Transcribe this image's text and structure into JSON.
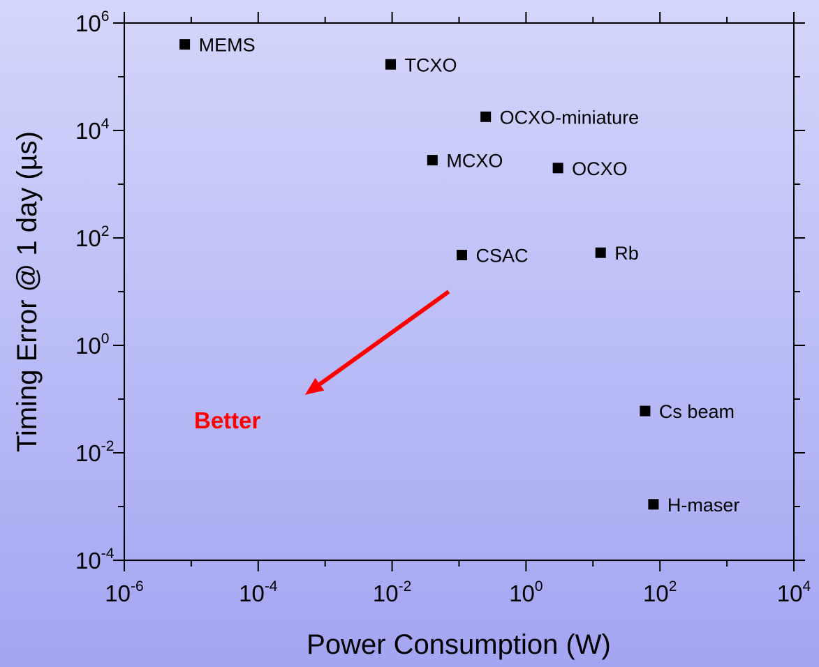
{
  "chart_data": {
    "type": "scatter",
    "xlabel": "Power Consumption (W)",
    "ylabel": "Timing  Error @ 1 day (µs)",
    "x_scale": "log",
    "y_scale": "log",
    "xlim": [
      1e-06,
      10000
    ],
    "ylim": [
      0.0001,
      1000000
    ],
    "x_ticks": [
      {
        "base": "10",
        "exp": "-6",
        "value": 1e-06
      },
      {
        "base": "10",
        "exp": "-4",
        "value": 0.0001
      },
      {
        "base": "10",
        "exp": "-2",
        "value": 0.01
      },
      {
        "base": "10",
        "exp": "0",
        "value": 1
      },
      {
        "base": "10",
        "exp": "2",
        "value": 100
      },
      {
        "base": "10",
        "exp": "4",
        "value": 10000
      }
    ],
    "y_ticks": [
      {
        "base": "10",
        "exp": "-4",
        "value": 0.0001
      },
      {
        "base": "10",
        "exp": "-2",
        "value": 0.01
      },
      {
        "base": "10",
        "exp": "0",
        "value": 1
      },
      {
        "base": "10",
        "exp": "2",
        "value": 100
      },
      {
        "base": "10",
        "exp": "4",
        "value": 10000
      },
      {
        "base": "10",
        "exp": "6",
        "value": 1000000
      }
    ],
    "grid": false,
    "marker": "square",
    "marker_color": "#000000",
    "points": [
      {
        "label": "MEMS",
        "x": 8e-06,
        "y": 400000
      },
      {
        "label": "TCXO",
        "x": 0.0095,
        "y": 170000
      },
      {
        "label": "OCXO-miniature",
        "x": 0.25,
        "y": 18000
      },
      {
        "label": "MCXO",
        "x": 0.04,
        "y": 2800
      },
      {
        "label": "OCXO",
        "x": 3,
        "y": 2000
      },
      {
        "label": "CSAC",
        "x": 0.11,
        "y": 48
      },
      {
        "label": "Rb",
        "x": 13,
        "y": 53
      },
      {
        "label": "Cs beam",
        "x": 60,
        "y": 0.06
      },
      {
        "label": "H-maser",
        "x": 80,
        "y": 0.0011
      }
    ],
    "annotation": {
      "text": "Better",
      "color": "#ff0000",
      "arrow_from": {
        "x": 0.07,
        "y": 10
      },
      "arrow_to": {
        "x": 0.0005,
        "y": 0.12
      }
    }
  }
}
